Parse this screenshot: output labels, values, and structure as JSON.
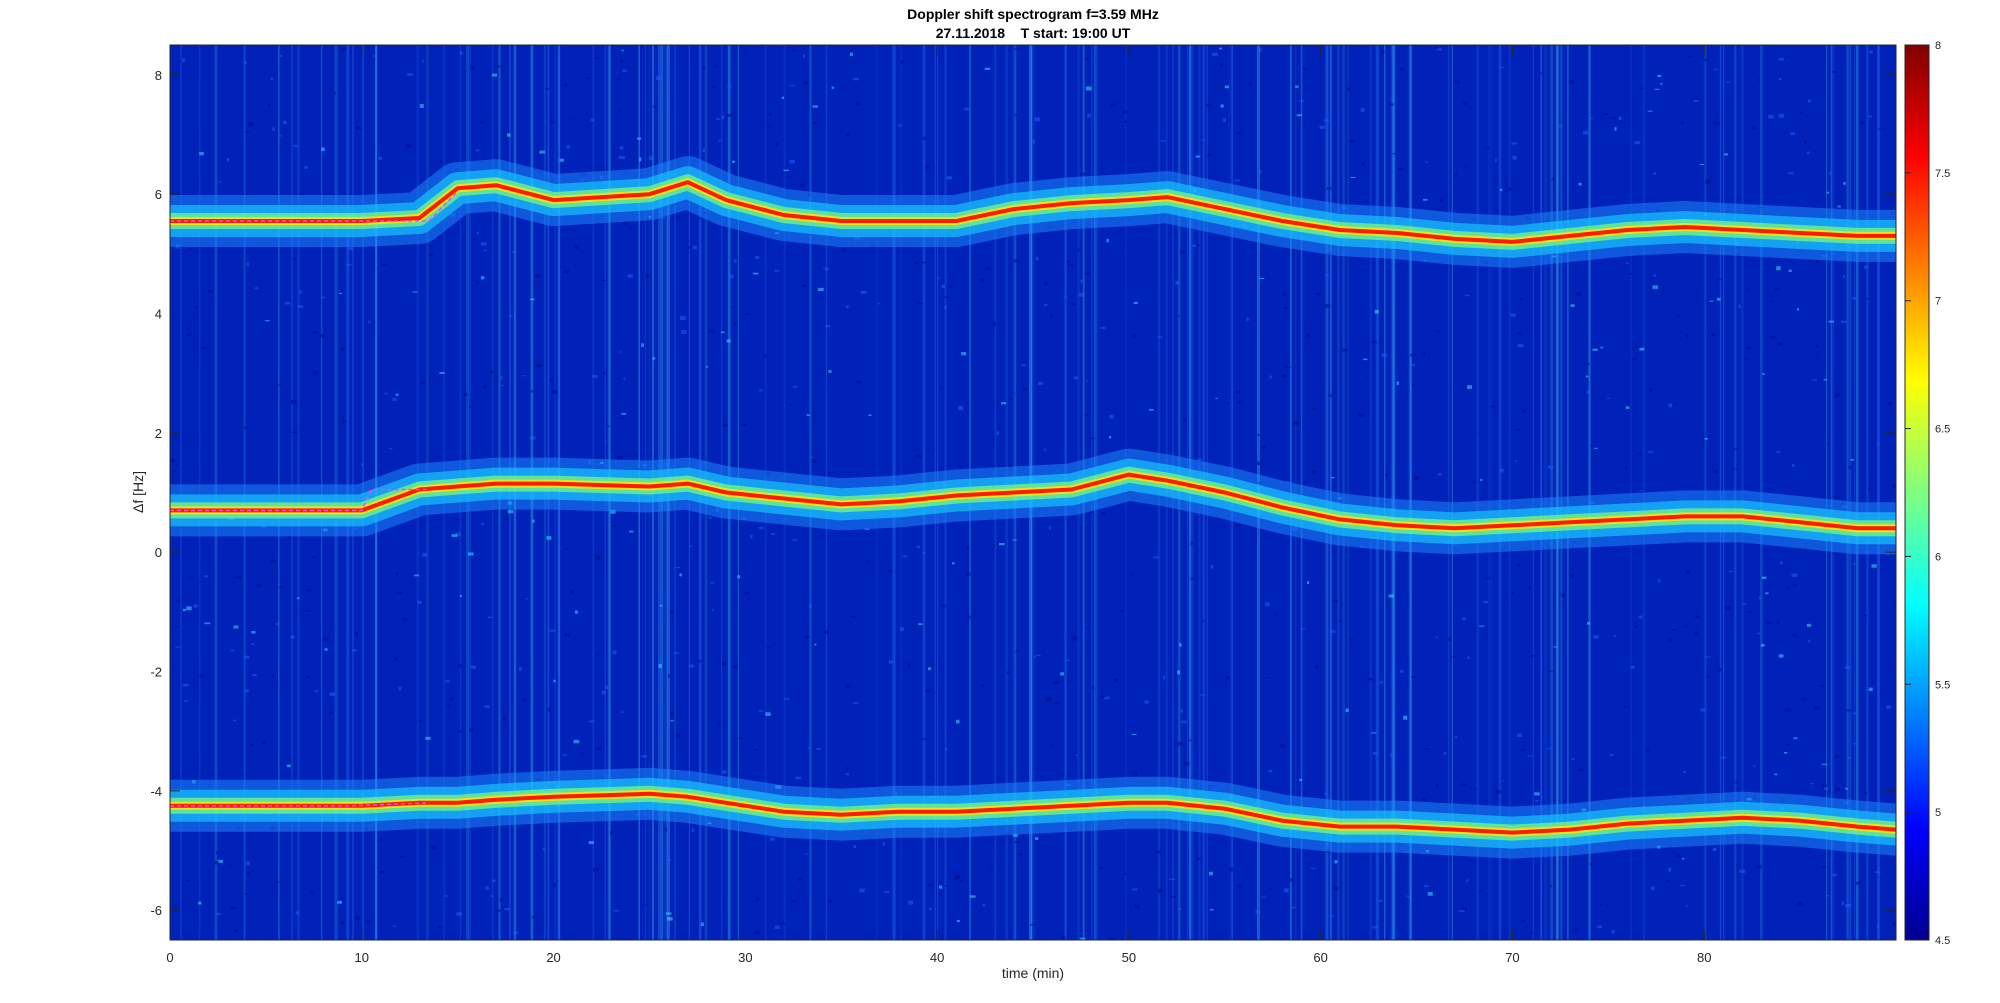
{
  "chart_data": {
    "type": "heatmap",
    "title": "Doppler shift spectrogram f=3.59 MHz",
    "subtitle": "27.11.2018    T start: 19:00 UT",
    "xlabel": "time (min)",
    "ylabel": "Δf [Hz]",
    "xlim": [
      0,
      90
    ],
    "ylim": [
      -6.5,
      8.5
    ],
    "x_ticks": [
      0,
      10,
      20,
      30,
      40,
      50,
      60,
      70,
      80
    ],
    "y_ticks": [
      -6,
      -4,
      -2,
      0,
      2,
      4,
      6,
      8
    ],
    "colorbar": {
      "colormap": "jet",
      "range": [
        4.5,
        8
      ],
      "ticks": [
        "4.5",
        "5",
        "5.5",
        "6",
        "6.5",
        "7",
        "7.5",
        "8"
      ]
    },
    "grid": false,
    "series": [
      {
        "x": [
          0,
          10,
          13,
          15,
          17,
          20,
          25,
          27,
          29,
          32,
          35,
          38,
          41,
          44,
          47,
          50,
          52,
          55,
          58,
          61,
          64,
          67,
          70,
          73,
          76,
          79,
          82,
          85,
          88,
          90
        ],
        "values": [
          5.55,
          5.55,
          5.6,
          6.1,
          6.15,
          5.9,
          6.0,
          6.2,
          5.9,
          5.65,
          5.55,
          5.55,
          5.55,
          5.75,
          5.85,
          5.9,
          5.95,
          5.75,
          5.55,
          5.4,
          5.35,
          5.25,
          5.2,
          5.3,
          5.4,
          5.45,
          5.4,
          5.35,
          5.3,
          5.3
        ]
      },
      {
        "x": [
          0,
          10,
          13,
          15,
          17,
          20,
          25,
          27,
          29,
          32,
          35,
          38,
          41,
          44,
          47,
          50,
          52,
          55,
          58,
          61,
          64,
          67,
          70,
          73,
          76,
          79,
          82,
          85,
          88,
          90
        ],
        "values": [
          0.7,
          0.7,
          1.05,
          1.1,
          1.15,
          1.15,
          1.1,
          1.15,
          1.0,
          0.9,
          0.8,
          0.85,
          0.95,
          1.0,
          1.05,
          1.3,
          1.2,
          1.0,
          0.75,
          0.55,
          0.45,
          0.4,
          0.45,
          0.5,
          0.55,
          0.6,
          0.6,
          0.5,
          0.4,
          0.4
        ]
      },
      {
        "x": [
          0,
          10,
          13,
          15,
          17,
          20,
          25,
          27,
          29,
          32,
          35,
          38,
          41,
          44,
          47,
          50,
          52,
          55,
          58,
          61,
          64,
          67,
          70,
          73,
          76,
          79,
          82,
          85,
          88,
          90
        ],
        "values": [
          -4.25,
          -4.25,
          -4.2,
          -4.2,
          -4.15,
          -4.1,
          -4.05,
          -4.1,
          -4.2,
          -4.35,
          -4.4,
          -4.35,
          -4.35,
          -4.3,
          -4.25,
          -4.2,
          -4.2,
          -4.3,
          -4.5,
          -4.6,
          -4.6,
          -4.65,
          -4.7,
          -4.65,
          -4.55,
          -4.5,
          -4.45,
          -4.5,
          -4.6,
          -4.65
        ]
      }
    ],
    "reference_lines": [
      {
        "color": "#ff40ff",
        "x": [
          0,
          10,
          10.5,
          13.5
        ],
        "values": [
          0.7,
          0.7,
          1.05,
          1.05
        ]
      },
      {
        "color": "#ff40ff",
        "x": [
          0,
          9.5,
          13.5
        ],
        "values": [
          -4.25,
          -4.25,
          -4.2
        ]
      },
      {
        "color": "#ff40ff",
        "x": [
          0,
          13.5,
          15
        ],
        "values": [
          5.55,
          5.55,
          6.05
        ]
      }
    ]
  }
}
